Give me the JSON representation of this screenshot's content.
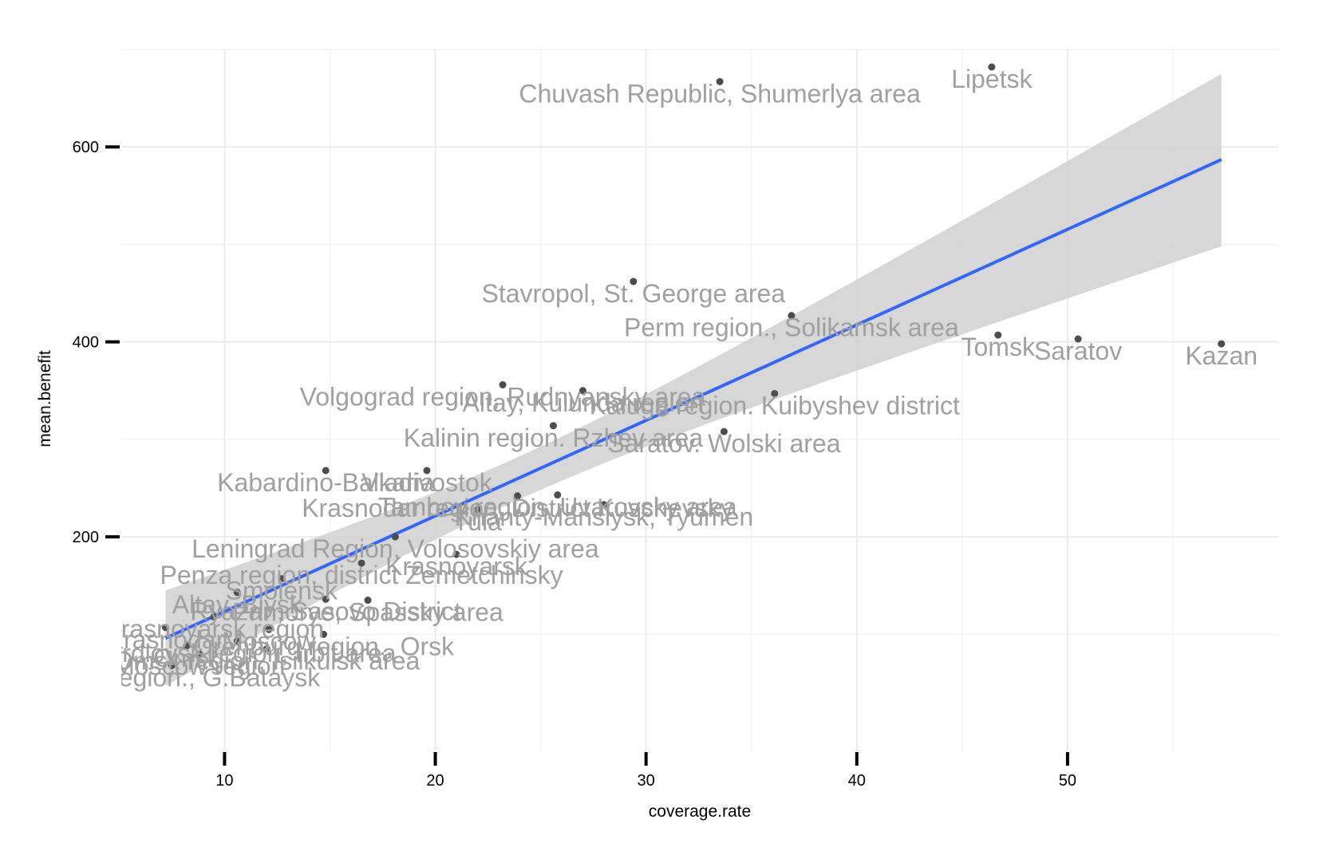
{
  "chart_data": {
    "type": "scatter",
    "title": "",
    "xlabel": "coverage.rate",
    "ylabel": "mean.benefit",
    "xlim": [
      5.1,
      60.0
    ],
    "ylim": [
      -20,
      700
    ],
    "x_ticks": [
      10,
      20,
      30,
      40,
      50
    ],
    "y_ticks": [
      200,
      400,
      600
    ],
    "grid": true,
    "colors": {
      "point": "#4d4d4d",
      "label": "#a0a0a0",
      "fit_line": "#3366ff",
      "confidence_band": "#d3d3d3",
      "grid_major": "#ebebeb",
      "grid_minor": "#f5f5f5"
    },
    "fit": {
      "method": "linear",
      "x_range": [
        7.2,
        57.3
      ],
      "y_start": 96,
      "y_end": 587,
      "band_upper": [
        145,
        675
      ],
      "band_lower": [
        47,
        498
      ],
      "band_center_x": 24
    },
    "points": [
      {
        "x": 33.5,
        "y": 667,
        "label": "Chuvash Republic, Shumerlya area"
      },
      {
        "x": 46.4,
        "y": 682,
        "label": "Lipetsk"
      },
      {
        "x": 29.4,
        "y": 462,
        "label": "Stavropol, St. George area"
      },
      {
        "x": 36.9,
        "y": 427,
        "label": "Perm region., Solikamsk area"
      },
      {
        "x": 46.7,
        "y": 407,
        "label": "Tomsk"
      },
      {
        "x": 50.5,
        "y": 403,
        "label": "Saratov"
      },
      {
        "x": 57.3,
        "y": 398,
        "label": "Kazan"
      },
      {
        "x": 23.2,
        "y": 356,
        "label": "Volgograd region, Rudnyansky area"
      },
      {
        "x": 27.0,
        "y": 350,
        "label": "Altay, Kulunda region"
      },
      {
        "x": 36.1,
        "y": 347,
        "label": "Kaluga region. Kuibyshev district"
      },
      {
        "x": 25.6,
        "y": 314,
        "label": "Kalinin region. Rzhev area"
      },
      {
        "x": 33.7,
        "y": 308,
        "label": "Saratov. Wolski area"
      },
      {
        "x": 14.8,
        "y": 268,
        "label": "Kabardino-Balkaria"
      },
      {
        "x": 19.6,
        "y": 268,
        "label": "Vladivostok"
      },
      {
        "x": 23.9,
        "y": 242,
        "label": "Krasnodar region. District Kuschevsky"
      },
      {
        "x": 25.8,
        "y": 243,
        "label": "Tambov region, Uvarovsky area"
      },
      {
        "x": 28.0,
        "y": 233,
        "label": "Khanty-Mansiysk, Tyumen"
      },
      {
        "x": 22.0,
        "y": 228,
        "label": "Tula"
      },
      {
        "x": 18.1,
        "y": 200,
        "label": "Leningrad Region, Volosovskiy area"
      },
      {
        "x": 21.0,
        "y": 182,
        "label": "Krasnoyarsk"
      },
      {
        "x": 16.5,
        "y": 173,
        "label": "Penza region, district Zemetchinsky"
      },
      {
        "x": 12.7,
        "y": 157,
        "label": "Smolensk"
      },
      {
        "x": 10.6,
        "y": 143,
        "label": "Altay, Biysk"
      },
      {
        "x": 14.8,
        "y": 136,
        "label": "Ryazan, Sasovo District"
      },
      {
        "x": 16.8,
        "y": 135,
        "label": "Primorye, Spassky area"
      },
      {
        "x": 9.5,
        "y": 118,
        "label": "Krasnoyarsk region"
      },
      {
        "x": 7.2,
        "y": 107,
        "label": "Krasnodar"
      },
      {
        "x": 12.1,
        "y": 105,
        "label": "Moscow"
      },
      {
        "x": 14.7,
        "y": 100,
        "label": "Orenburg region., Orsk"
      },
      {
        "x": 10.6,
        "y": 93,
        "label": "Sverdlovsk region, Irbit area"
      },
      {
        "x": 8.2,
        "y": 88,
        "label": "Omsk"
      },
      {
        "x": 12.0,
        "y": 85,
        "label": "Omsk region, Isilkulsk area"
      },
      {
        "x": 8.8,
        "y": 80,
        "label": "Moscow region"
      },
      {
        "x": 7.5,
        "y": 68,
        "label": "Rostov region., G.Bataysk"
      }
    ]
  }
}
